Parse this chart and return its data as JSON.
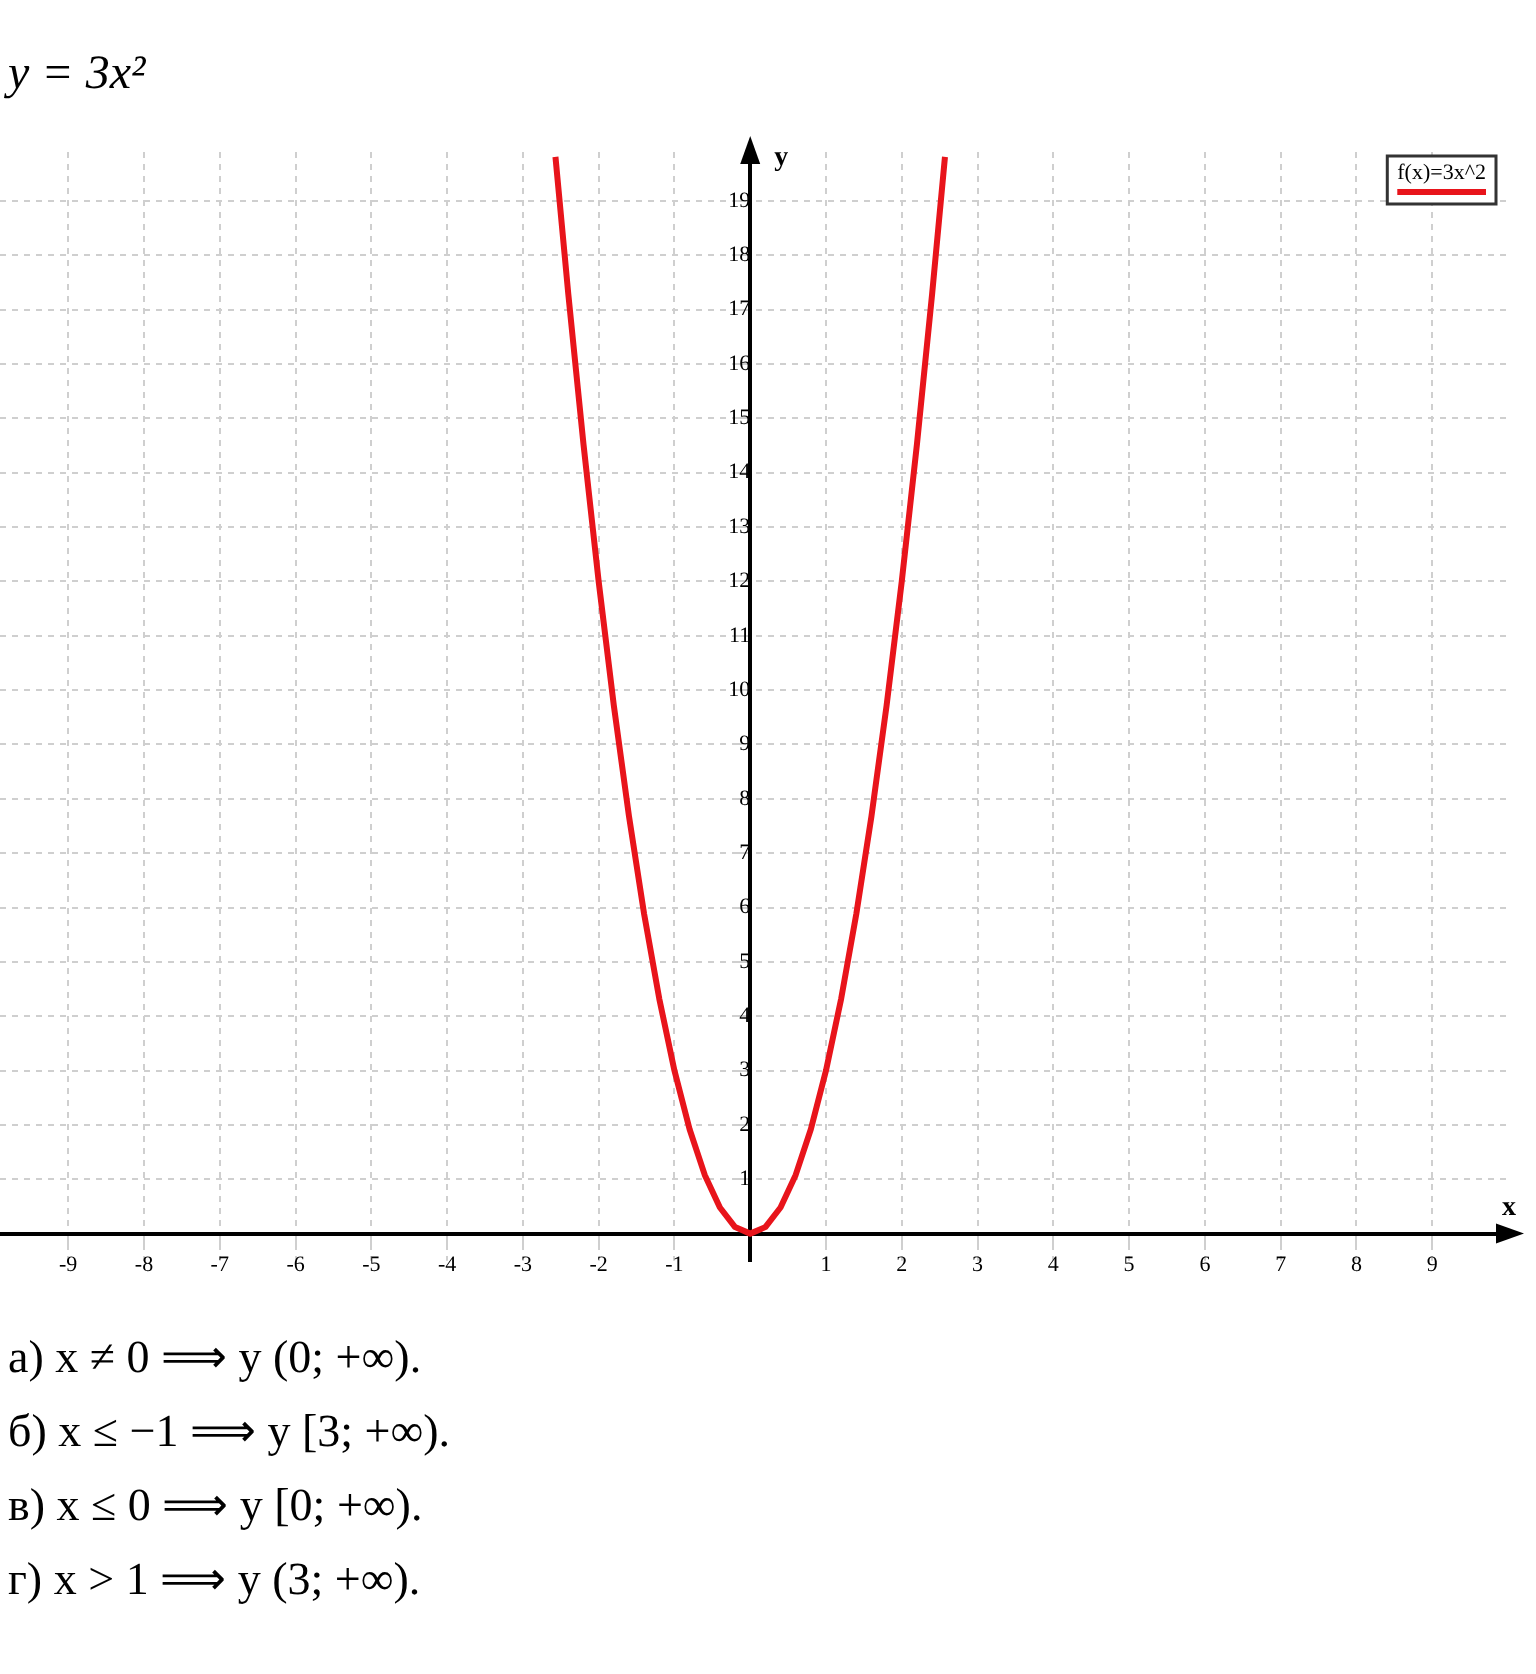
{
  "chart_data": {
    "type": "line",
    "title": "y = 3x²",
    "xlabel": "x",
    "ylabel": "y",
    "x": [
      -2.57,
      -2.4,
      -2.2,
      -2,
      -1.8,
      -1.6,
      -1.4,
      -1.2,
      -1,
      -0.8,
      -0.6,
      -0.4,
      -0.2,
      0,
      0.2,
      0.4,
      0.6,
      0.8,
      1,
      1.2,
      1.4,
      1.6,
      1.8,
      2,
      2.2,
      2.4,
      2.57
    ],
    "series": [
      {
        "name": "f(x)=3x^2",
        "color": "#e8141b",
        "values": [
          19.81,
          17.28,
          14.52,
          12,
          9.72,
          7.68,
          5.88,
          4.32,
          3,
          1.92,
          1.08,
          0.48,
          0.12,
          0,
          0.12,
          0.48,
          1.08,
          1.92,
          3,
          4.32,
          5.88,
          7.68,
          9.72,
          12,
          14.52,
          17.28,
          19.81
        ]
      }
    ],
    "xlim": [
      -9.9,
      10
    ],
    "ylim": [
      -0.5,
      19.9
    ],
    "xticks": [
      -9,
      -8,
      -7,
      -6,
      -5,
      -4,
      -3,
      -2,
      -1,
      {
        "value": 0,
        "label": null
      },
      1,
      2,
      3,
      4,
      5,
      6,
      7,
      8,
      9
    ],
    "yticks": [
      {
        "value": 0,
        "label": null
      },
      1,
      2,
      3,
      4,
      5,
      6,
      7,
      8,
      9,
      10,
      11,
      12,
      13,
      14,
      15,
      16,
      17,
      18,
      19
    ],
    "grid": true,
    "legend": "top right",
    "marker": "none",
    "line_style": "solid",
    "annotations": [
      "а) x ≠ 0 ⟹ y (0; +∞).",
      "б) x ≤ −1 ⟹ y [3; +∞).",
      "в) x ≤ 0 ⟹ y [0; +∞).",
      "г) x > 1 ⟹ y (3; +∞)."
    ]
  }
}
